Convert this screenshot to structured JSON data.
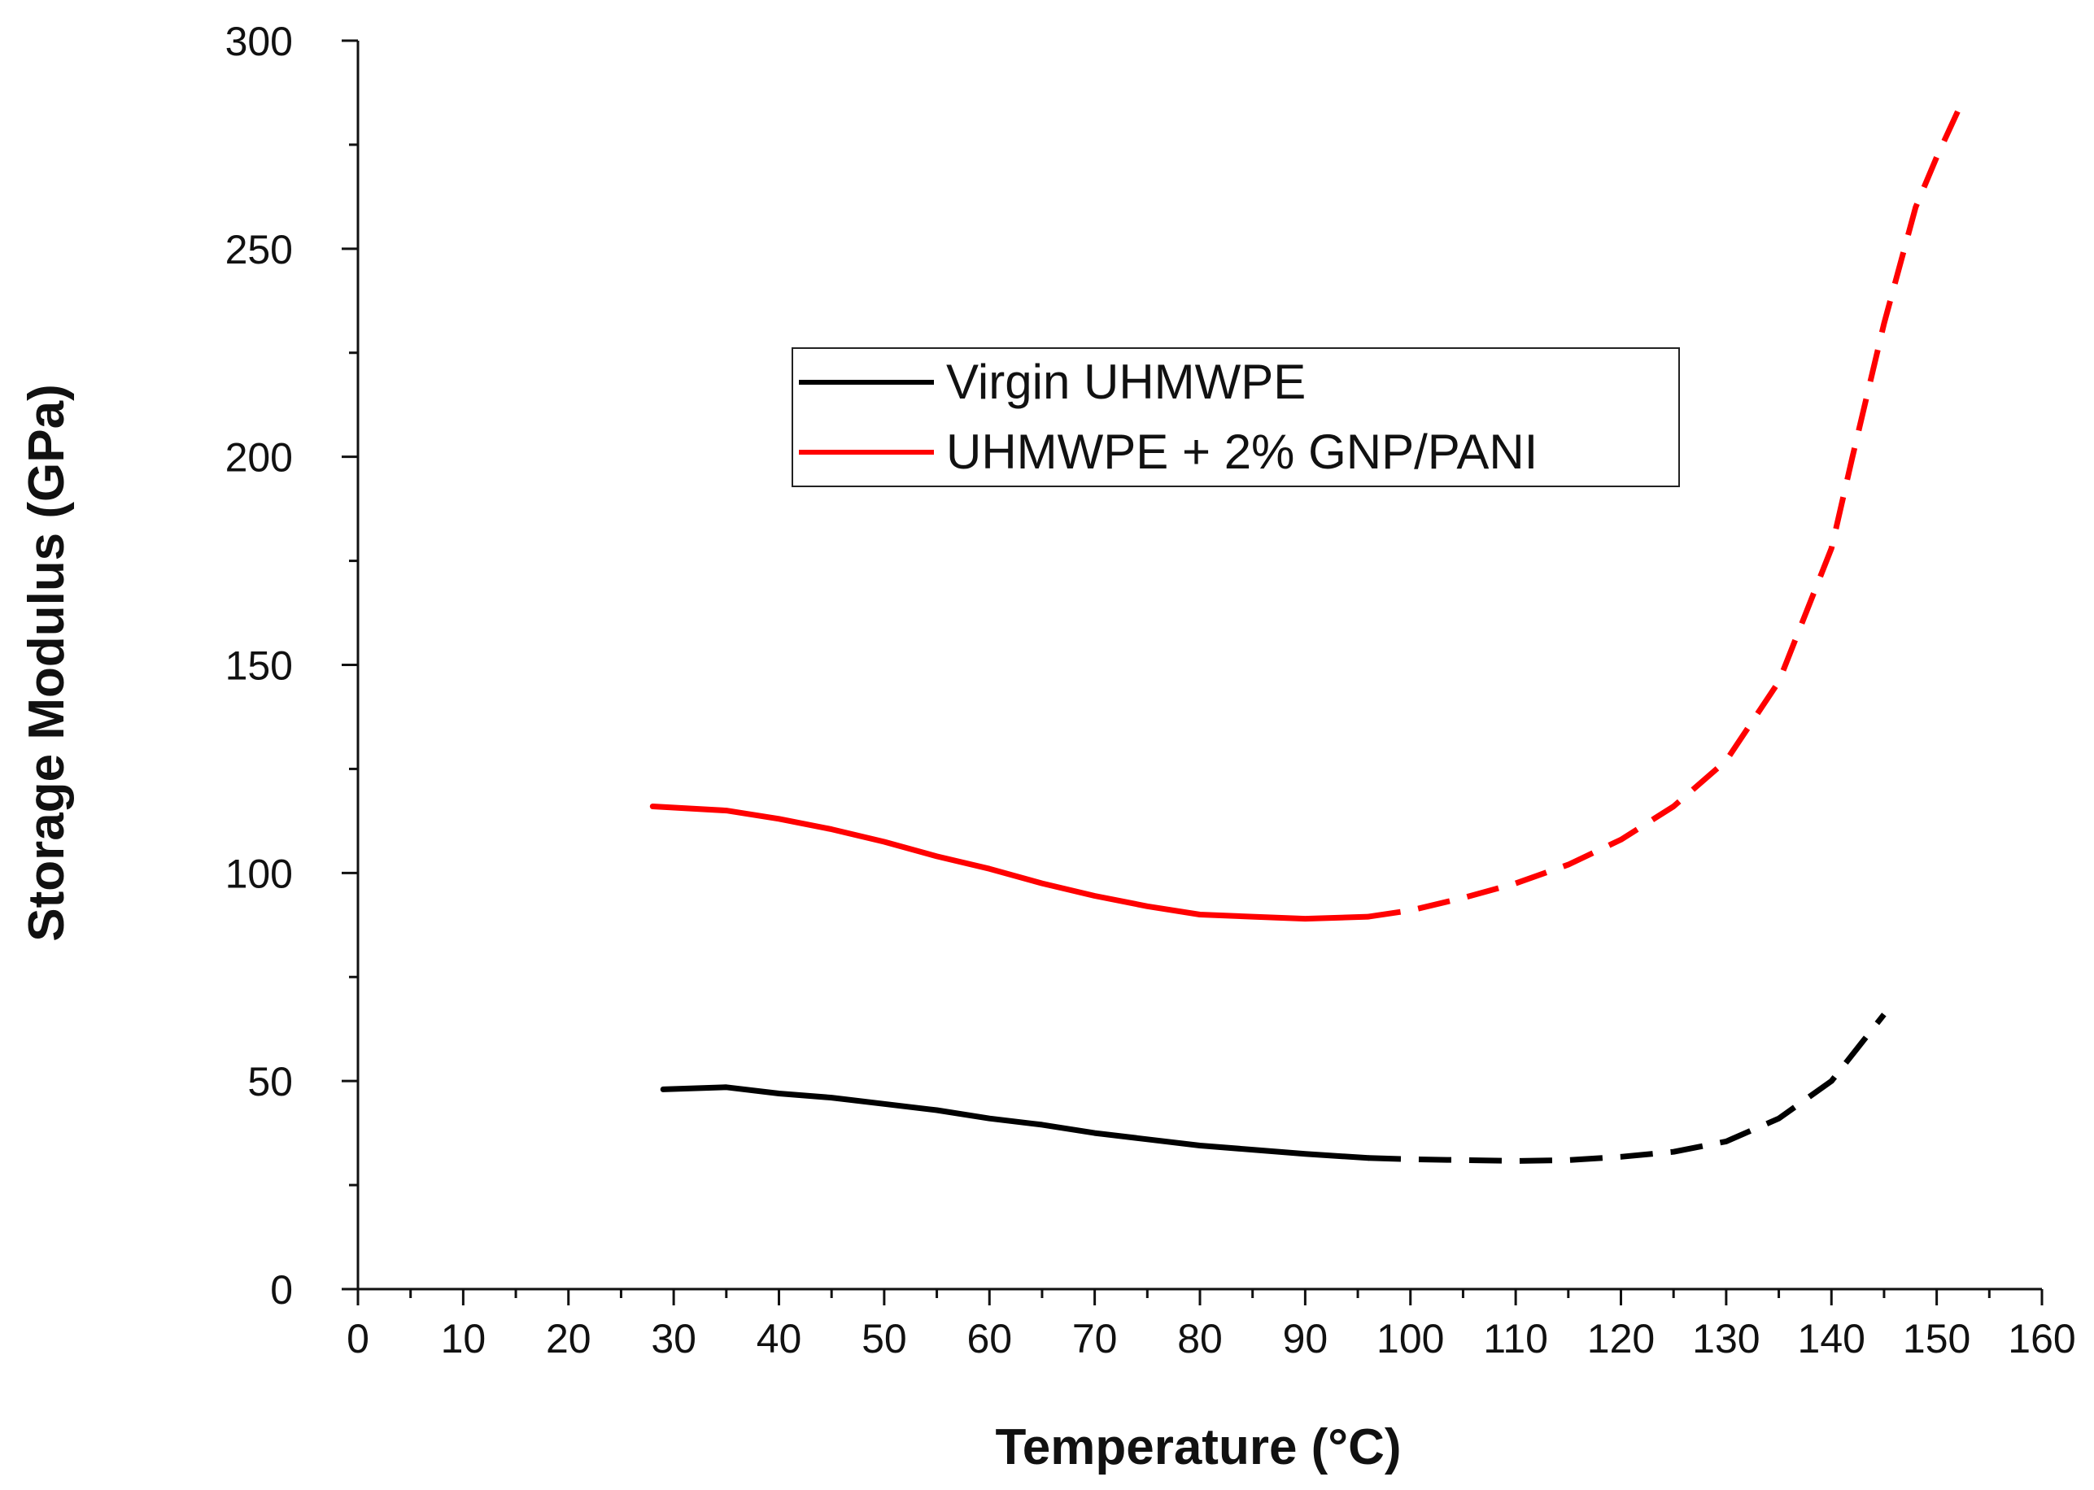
{
  "chart_data": {
    "type": "line",
    "title": "",
    "xlabel": "Temperature (°C)",
    "ylabel": "Storage Modulus (GPa)",
    "xlim": [
      0,
      160
    ],
    "ylim": [
      0,
      300
    ],
    "x_major_step": 10,
    "x_minor_step": 5,
    "y_major_step": 50,
    "y_minor_step": 25,
    "x_tick_labels": [
      "0",
      "10",
      "20",
      "30",
      "40",
      "50",
      "60",
      "70",
      "80",
      "90",
      "100",
      "110",
      "120",
      "130",
      "140",
      "150",
      "160"
    ],
    "y_tick_labels": [
      "0",
      "50",
      "100",
      "150",
      "200",
      "250",
      "300"
    ],
    "grid": false,
    "legend_position": "center",
    "series": [
      {
        "name": "Virgin UHMWPE",
        "color": "#000000",
        "measured": {
          "x": [
            29,
            35,
            40,
            45,
            50,
            55,
            60,
            65,
            70,
            75,
            80,
            85,
            90,
            96
          ],
          "y": [
            48,
            48.5,
            47,
            46,
            44.5,
            43,
            41,
            39.5,
            37.5,
            36,
            34.5,
            33.5,
            32.5,
            31.5
          ]
        },
        "extrapolated": {
          "x": [
            96,
            100,
            105,
            110,
            115,
            120,
            125,
            130,
            135,
            140,
            145
          ],
          "y": [
            31.5,
            31.2,
            31,
            30.8,
            31,
            31.8,
            33,
            35.5,
            41,
            50,
            66
          ]
        }
      },
      {
        "name": "UHMWPE + 2% GNP/PANI",
        "color": "#ff0000",
        "measured": {
          "x": [
            28,
            35,
            40,
            45,
            50,
            55,
            60,
            65,
            70,
            75,
            80,
            85,
            90,
            96
          ],
          "y": [
            116,
            115,
            113,
            110.5,
            107.5,
            104,
            101,
            97.5,
            94.5,
            92,
            90,
            89.5,
            89,
            89.5
          ]
        },
        "extrapolated": {
          "x": [
            96,
            100,
            105,
            110,
            115,
            120,
            125,
            130,
            135,
            140,
            142,
            145,
            148,
            150,
            152
          ],
          "y": [
            89.5,
            91,
            94,
            97.5,
            102,
            108,
            116,
            127,
            146,
            178,
            200,
            232,
            260,
            272,
            283
          ]
        }
      }
    ]
  }
}
